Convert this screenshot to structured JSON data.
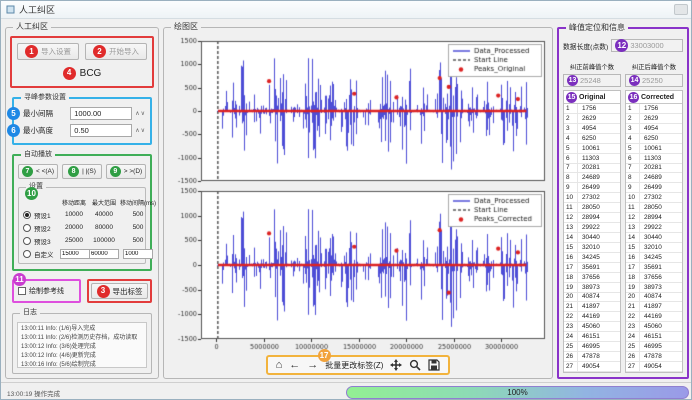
{
  "window": {
    "title": "人工纠区",
    "status": "13:00:19 操作完成",
    "progress_label": "100%"
  },
  "markers": {
    "m1": "1",
    "m2": "2",
    "m3": "3",
    "m4": "4",
    "m5": "5",
    "m6": "6",
    "m7": "7",
    "m8": "8",
    "m9": "9",
    "m10": "10",
    "m11": "11",
    "m12": "12",
    "m13": "13",
    "m14": "14",
    "m15": "15",
    "m16": "16",
    "m17": "17"
  },
  "left_panel": {
    "group_label": "人工纠区",
    "buttons": {
      "import_settings": "导入设置",
      "start_import": "开始导入"
    },
    "signal_type": "BCG",
    "peak_params": {
      "label": "寻峰参数设置",
      "min_interval_label": "最小间隔",
      "min_interval_value": "1000.00",
      "min_height_label": "最小高度",
      "min_height_value": "0.50"
    },
    "auto_nav": {
      "label": "自动播放",
      "prev": "< <(A)",
      "pause": "| |(S)",
      "next": "> >(D)",
      "settings_label": "设置",
      "headers": [
        "移动距离",
        "最大范围",
        "移动间隔(ms)"
      ],
      "presets": [
        {
          "name": "预设1",
          "selected": true,
          "editable": false,
          "values": [
            "10000",
            "40000",
            "500"
          ]
        },
        {
          "name": "预设2",
          "selected": false,
          "editable": false,
          "values": [
            "20000",
            "80000",
            "500"
          ]
        },
        {
          "name": "预设3",
          "selected": false,
          "editable": false,
          "values": [
            "25000",
            "100000",
            "500"
          ]
        },
        {
          "name": "自定义",
          "selected": false,
          "editable": true,
          "values": [
            "15000",
            "60000",
            "1000"
          ]
        }
      ]
    },
    "reference_line_checkbox": "绘制参考线",
    "export_label_button": "导出标签",
    "log": {
      "label": "日志",
      "entries": [
        "13:00:11 Info: (1/6)导入完成",
        "13:00:11 Info: (2/6)检测历史存档，成功读取",
        "13:00:12 Info: (3/6)处理完成",
        "13:00:12 Info: (4/6)更新完成",
        "13:00:16 Info: (5/6)绘制完成",
        "13:00:19 Info: (6/6)绘制完成"
      ]
    }
  },
  "chart_panel": {
    "group_label": "绘图区",
    "toolbar": {
      "batch_edit_label": "批量更改标签(Z)"
    }
  },
  "chart_data": [
    {
      "type": "line",
      "legend": [
        "Data_Processed",
        "Start Line",
        "Peaks_Original"
      ],
      "colors": {
        "signal": "#2020cc",
        "start_line": "#000000",
        "peaks": "#dd2222"
      },
      "ylim": [
        -1500,
        1500
      ],
      "yticks": [
        1500,
        1000,
        500,
        0,
        -500,
        -1000,
        -1500
      ],
      "xticks": [
        0,
        5000000,
        10000000,
        15000000,
        20000000,
        25000000,
        30000000
      ],
      "xmax": 33003000,
      "baseline": 0,
      "start_line_x": 150000,
      "peak_markers_frac": [
        [
          0.168,
          640
        ],
        [
          0.44,
          370
        ],
        [
          0.575,
          290
        ],
        [
          0.713,
          705
        ],
        [
          0.742,
          515
        ],
        [
          0.9,
          330
        ],
        [
          0.963,
          255
        ]
      ],
      "bursts": [
        [
          0.015,
          0.035,
          1450
        ],
        [
          0.04,
          0.065,
          850
        ],
        [
          0.07,
          0.105,
          1350
        ],
        [
          0.115,
          0.16,
          750
        ],
        [
          0.165,
          0.225,
          1450
        ],
        [
          0.235,
          0.265,
          550
        ],
        [
          0.275,
          0.335,
          1350
        ],
        [
          0.34,
          0.385,
          900
        ],
        [
          0.395,
          0.45,
          1250
        ],
        [
          0.465,
          0.495,
          450
        ],
        [
          0.515,
          0.565,
          1150
        ],
        [
          0.575,
          0.625,
          1400
        ],
        [
          0.635,
          0.675,
          800
        ],
        [
          0.695,
          0.785,
          1450
        ],
        [
          0.8,
          0.835,
          650
        ],
        [
          0.85,
          0.885,
          1050
        ],
        [
          0.905,
          0.995,
          1500
        ]
      ]
    },
    {
      "type": "line",
      "legend": [
        "Data_Processed",
        "Start Line",
        "Peaks_Corrected"
      ],
      "colors": {
        "signal": "#2020cc",
        "start_line": "#000000",
        "peaks": "#dd2222"
      },
      "ylim": [
        -1500,
        1500
      ],
      "yticks": [
        1500,
        1000,
        500,
        0,
        -500,
        -1000,
        -1500
      ],
      "xticks": [
        0,
        5000000,
        10000000,
        15000000,
        20000000,
        25000000,
        30000000
      ],
      "xmax": 33003000,
      "baseline": 0,
      "start_line_x": 150000,
      "peak_markers_frac": [
        [
          0.168,
          640
        ],
        [
          0.44,
          370
        ],
        [
          0.575,
          290
        ],
        [
          0.713,
          705
        ],
        [
          0.742,
          -560
        ],
        [
          0.9,
          330
        ],
        [
          0.963,
          255
        ]
      ],
      "bursts": [
        [
          0.015,
          0.035,
          1450
        ],
        [
          0.04,
          0.065,
          850
        ],
        [
          0.07,
          0.105,
          1350
        ],
        [
          0.115,
          0.16,
          750
        ],
        [
          0.165,
          0.225,
          1450
        ],
        [
          0.235,
          0.265,
          550
        ],
        [
          0.275,
          0.335,
          1350
        ],
        [
          0.34,
          0.385,
          900
        ],
        [
          0.395,
          0.45,
          1250
        ],
        [
          0.465,
          0.495,
          450
        ],
        [
          0.515,
          0.565,
          1150
        ],
        [
          0.575,
          0.625,
          1400
        ],
        [
          0.635,
          0.675,
          800
        ],
        [
          0.695,
          0.785,
          1450
        ],
        [
          0.8,
          0.835,
          650
        ],
        [
          0.85,
          0.885,
          1050
        ],
        [
          0.905,
          0.995,
          1500
        ]
      ]
    }
  ],
  "right_panel": {
    "group_label": "峰值定位和信息",
    "data_length_label": "数据长度(点数)",
    "data_length_value": "33003000",
    "before_label": "纠正前峰值个数",
    "before_value": "25248",
    "after_label": "纠正后峰值个数",
    "after_value": "25250",
    "col_original": "Original",
    "col_corrected": "Corrected",
    "peaks": [
      1756,
      2629,
      4954,
      6250,
      10061,
      11303,
      20281,
      24689,
      26499,
      27302,
      28050,
      28994,
      29922,
      30440,
      32010,
      34245,
      35691,
      37656,
      38973,
      40874,
      41897,
      44169,
      45060,
      46151,
      46995,
      47878,
      49054
    ]
  }
}
